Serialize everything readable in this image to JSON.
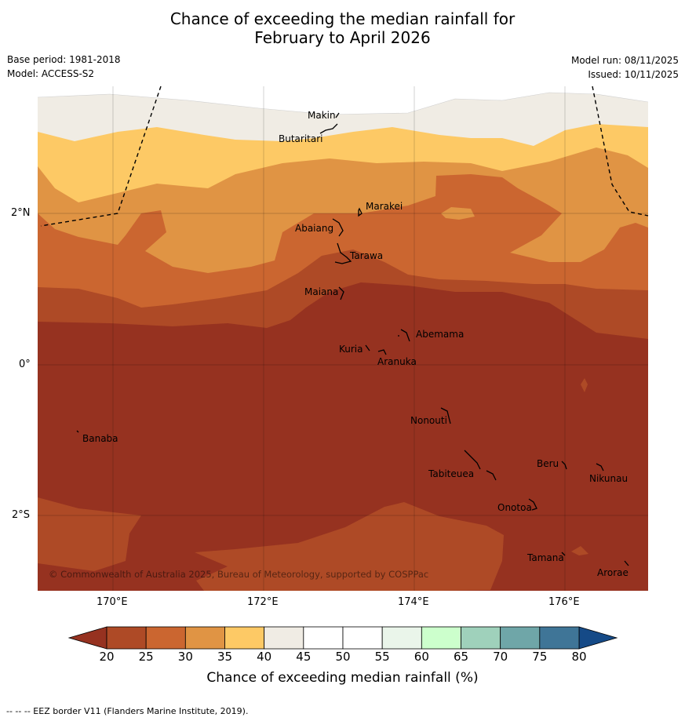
{
  "title_line1": "Chance of exceeding the median rainfall for",
  "title_line2": "February to April 2026",
  "base_period": "Base period: 1981-2018",
  "model": "Model: ACCESS-S2",
  "model_run": "Model run: 08/11/2025",
  "issued": "Issued: 10/11/2025",
  "lon_ticks": [
    "170°E",
    "172°E",
    "174°E",
    "176°E"
  ],
  "lat_ticks": [
    "2°N",
    "0°",
    "2°S"
  ],
  "places": {
    "makin": "Makin",
    "butaritari": "Butaritari",
    "marakei": "Marakei",
    "abaiang": "Abaiang",
    "tarawa": "Tarawa",
    "maiana": "Maiana",
    "abemama": "Abemama",
    "kuria": "Kuria",
    "aranuka": "Aranuka",
    "nonouti": "Nonouti",
    "banaba": "Banaba",
    "beru": "Beru",
    "nikunau": "Nikunau",
    "tabiteuea": "Tabiteuea",
    "onotoa": "Onotoa",
    "tamana": "Tamana",
    "arorae": "Arorae"
  },
  "copyright": "© Commonwealth of Australia 2025, Bureau of Meteorology, supported by COSPPac",
  "colorbar": {
    "labels": [
      "20",
      "25",
      "30",
      "35",
      "40",
      "45",
      "50",
      "55",
      "60",
      "65",
      "70",
      "75",
      "80"
    ],
    "colors": [
      "#ae4a26",
      "#cb6630",
      "#e09444",
      "#fdc965",
      "#f0ece4",
      "#ffffff",
      "#ffffff",
      "#eaf5ea",
      "#ccffcc",
      "#9fd1bb",
      "#6fa6a8",
      "#3f7597",
      "#1e4f86"
    ],
    "under_color": "#963220",
    "over_color": "#154a87",
    "title": "Chance of exceeding median rainfall (%)"
  },
  "footnote": "--  --  -- EEZ border V11 (Flanders Marine Institute, 2019)."
}
